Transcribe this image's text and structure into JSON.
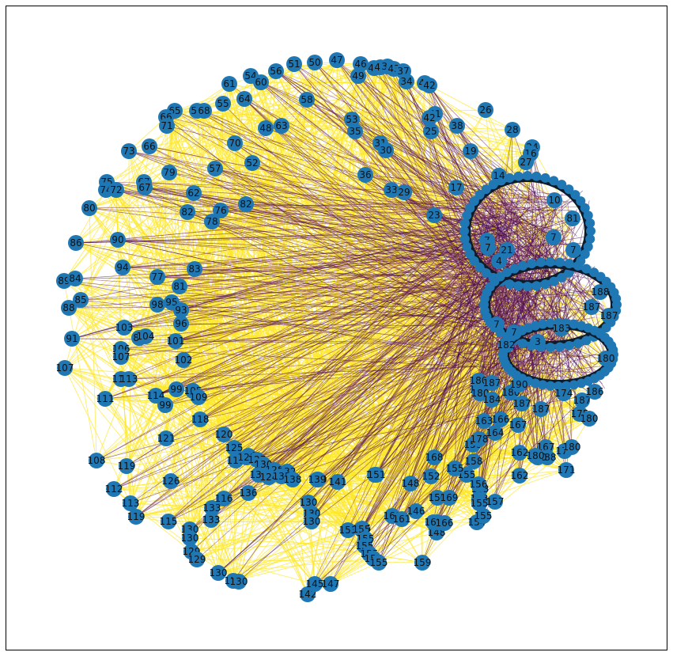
{
  "figure": {
    "background": "#ffffff",
    "border_color": "#000000"
  },
  "graph": {
    "type": "directed-network",
    "node_color": "#1f77b4",
    "node_label_color": "#111111",
    "edge_colors": {
      "light": "#fde725",
      "dark": "#440154",
      "mid": "#7a2a5a"
    },
    "edge_opacity": 0.7
  },
  "chart_data": {
    "type": "network",
    "nodes": [
      "10",
      "11",
      "14",
      "17",
      "19",
      "21",
      "23",
      "25",
      "26",
      "27",
      "28",
      "29",
      "30",
      "31",
      "33",
      "34",
      "35",
      "36",
      "37",
      "38",
      "39",
      "40",
      "41",
      "42",
      "43",
      "44",
      "45",
      "46",
      "47",
      "48",
      "49",
      "50",
      "51",
      "52",
      "53",
      "54",
      "55",
      "56",
      "57",
      "58",
      "59",
      "60",
      "61",
      "62",
      "63",
      "64",
      "65",
      "66",
      "67",
      "68",
      "70",
      "71",
      "72",
      "73",
      "74",
      "75",
      "76",
      "77",
      "78",
      "79",
      "80",
      "81",
      "82",
      "83",
      "84",
      "85",
      "86",
      "87",
      "88",
      "89",
      "90",
      "91",
      "93",
      "94",
      "95",
      "96",
      "98",
      "99",
      "101",
      "102",
      "103",
      "104",
      "105",
      "106",
      "107",
      "108",
      "109",
      "111",
      "112",
      "113",
      "114",
      "115",
      "116",
      "117",
      "118",
      "119",
      "120",
      "121",
      "122",
      "123",
      "124",
      "125",
      "126",
      "127",
      "128",
      "129",
      "130",
      "131",
      "132",
      "133",
      "134",
      "136",
      "137",
      "138",
      "139",
      "140",
      "141",
      "142",
      "144",
      "145",
      "146",
      "147",
      "148",
      "149",
      "150",
      "151",
      "152",
      "153",
      "154",
      "155",
      "156",
      "157",
      "158",
      "159",
      "160",
      "161",
      "162",
      "163",
      "164",
      "165",
      "166",
      "167",
      "168",
      "169",
      "170",
      "171",
      "172",
      "173",
      "174",
      "175",
      "176",
      "177",
      "178",
      "179",
      "180",
      "181",
      "182",
      "183",
      "184",
      "185",
      "186",
      "187",
      "188",
      "189",
      "190"
    ],
    "labeled_nodes": [
      {
        "label": "50"
      },
      {
        "label": "47"
      },
      {
        "label": "51"
      },
      {
        "label": "46"
      },
      {
        "label": "45"
      },
      {
        "label": "44"
      },
      {
        "label": "39"
      },
      {
        "label": "43"
      },
      {
        "label": "37"
      },
      {
        "label": "56"
      },
      {
        "label": "49"
      },
      {
        "label": "54"
      },
      {
        "label": "60"
      },
      {
        "label": "34"
      },
      {
        "label": "40"
      },
      {
        "label": "42"
      },
      {
        "label": "61"
      },
      {
        "label": "64"
      },
      {
        "label": "58"
      },
      {
        "label": "55"
      },
      {
        "label": "26"
      },
      {
        "label": "41"
      },
      {
        "label": "42"
      },
      {
        "label": "65"
      },
      {
        "label": "59"
      },
      {
        "label": "68"
      },
      {
        "label": "53"
      },
      {
        "label": "38"
      },
      {
        "label": "66"
      },
      {
        "label": "71"
      },
      {
        "label": "63"
      },
      {
        "label": "48"
      },
      {
        "label": "35"
      },
      {
        "label": "25"
      },
      {
        "label": "28"
      },
      {
        "label": "70"
      },
      {
        "label": "31"
      },
      {
        "label": "30"
      },
      {
        "label": "19"
      },
      {
        "label": "24"
      },
      {
        "label": "16"
      },
      {
        "label": "73"
      },
      {
        "label": "66"
      },
      {
        "label": "27"
      },
      {
        "label": "52"
      },
      {
        "label": "57"
      },
      {
        "label": "79"
      },
      {
        "label": "36"
      },
      {
        "label": "14"
      },
      {
        "label": "75"
      },
      {
        "label": "67"
      },
      {
        "label": "74"
      },
      {
        "label": "72"
      },
      {
        "label": "67"
      },
      {
        "label": "33"
      },
      {
        "label": "29"
      },
      {
        "label": "17"
      },
      {
        "label": "62"
      },
      {
        "label": "82"
      },
      {
        "label": "80"
      },
      {
        "label": "76"
      },
      {
        "label": "82"
      },
      {
        "label": "78"
      },
      {
        "label": "10"
      },
      {
        "label": "23"
      },
      {
        "label": "81"
      },
      {
        "label": "86"
      },
      {
        "label": "90"
      },
      {
        "label": "21"
      },
      {
        "label": "94"
      },
      {
        "label": "83"
      },
      {
        "label": "89"
      },
      {
        "label": "84"
      },
      {
        "label": "77"
      },
      {
        "label": "81"
      },
      {
        "label": "85"
      },
      {
        "label": "88"
      },
      {
        "label": "98"
      },
      {
        "label": "95"
      },
      {
        "label": "93"
      },
      {
        "label": "96"
      },
      {
        "label": "103"
      },
      {
        "label": "87"
      },
      {
        "label": "104"
      },
      {
        "label": "91"
      },
      {
        "label": "101"
      },
      {
        "label": "106"
      },
      {
        "label": "107"
      },
      {
        "label": "102"
      },
      {
        "label": "107"
      },
      {
        "label": "110"
      },
      {
        "label": "113"
      },
      {
        "label": "99"
      },
      {
        "label": "105"
      },
      {
        "label": "114"
      },
      {
        "label": "109"
      },
      {
        "label": "111"
      },
      {
        "label": "99"
      },
      {
        "label": "118"
      },
      {
        "label": "120"
      },
      {
        "label": "121"
      },
      {
        "label": "125"
      },
      {
        "label": "123"
      },
      {
        "label": "117"
      },
      {
        "label": "122"
      },
      {
        "label": "127"
      },
      {
        "label": "130"
      },
      {
        "label": "128"
      },
      {
        "label": "132"
      },
      {
        "label": "134"
      },
      {
        "label": "124"
      },
      {
        "label": "135"
      },
      {
        "label": "138"
      },
      {
        "label": "140"
      },
      {
        "label": "139"
      },
      {
        "label": "141"
      },
      {
        "label": "144"
      },
      {
        "label": "151"
      },
      {
        "label": "108"
      },
      {
        "label": "119"
      },
      {
        "label": "112"
      },
      {
        "label": "126"
      },
      {
        "label": "113"
      },
      {
        "label": "116"
      },
      {
        "label": "136"
      },
      {
        "label": "130"
      },
      {
        "label": "119"
      },
      {
        "label": "133"
      },
      {
        "label": "115"
      },
      {
        "label": "133"
      },
      {
        "label": "130"
      },
      {
        "label": "130"
      },
      {
        "label": "130"
      },
      {
        "label": "130"
      },
      {
        "label": "129"
      },
      {
        "label": "129"
      },
      {
        "label": "130"
      },
      {
        "label": "133"
      },
      {
        "label": "130"
      },
      {
        "label": "142"
      },
      {
        "label": "145"
      },
      {
        "label": "147"
      },
      {
        "label": "155"
      },
      {
        "label": "153"
      },
      {
        "label": "155"
      },
      {
        "label": "155"
      },
      {
        "label": "155"
      },
      {
        "label": "155"
      },
      {
        "label": "155"
      },
      {
        "label": "155"
      },
      {
        "label": "159"
      },
      {
        "label": "146"
      },
      {
        "label": "148"
      },
      {
        "label": "149"
      },
      {
        "label": "150"
      },
      {
        "label": "169"
      },
      {
        "label": "160"
      },
      {
        "label": "161"
      },
      {
        "label": "165"
      },
      {
        "label": "166"
      },
      {
        "label": "148"
      },
      {
        "label": "154"
      },
      {
        "label": "155"
      },
      {
        "label": "153"
      },
      {
        "label": "153"
      },
      {
        "label": "155"
      },
      {
        "label": "157"
      },
      {
        "label": "155"
      },
      {
        "label": "156"
      },
      {
        "label": "152"
      },
      {
        "label": "155"
      },
      {
        "label": "158"
      },
      {
        "label": "168"
      },
      {
        "label": "158"
      },
      {
        "label": "162"
      },
      {
        "label": "162"
      },
      {
        "label": "163"
      },
      {
        "label": "164"
      },
      {
        "label": "166"
      },
      {
        "label": "167"
      },
      {
        "label": "178"
      },
      {
        "label": "180"
      },
      {
        "label": "180"
      },
      {
        "label": "167"
      },
      {
        "label": "170"
      },
      {
        "label": "180"
      },
      {
        "label": "171"
      },
      {
        "label": "188"
      },
      {
        "label": "180"
      },
      {
        "label": "180"
      },
      {
        "label": "175"
      },
      {
        "label": "180"
      },
      {
        "label": "187"
      },
      {
        "label": "187"
      },
      {
        "label": "174"
      },
      {
        "label": "187"
      },
      {
        "label": "186"
      },
      {
        "label": "180"
      },
      {
        "label": "184"
      },
      {
        "label": "180"
      },
      {
        "label": "187"
      },
      {
        "label": "190"
      },
      {
        "label": "182"
      },
      {
        "label": "183"
      },
      {
        "label": "187"
      },
      {
        "label": "188"
      },
      {
        "label": "187"
      },
      {
        "label": "180"
      },
      {
        "label": "7"
      },
      {
        "label": "7"
      },
      {
        "label": "4"
      },
      {
        "label": "7"
      },
      {
        "label": "7"
      },
      {
        "label": "7"
      },
      {
        "label": "7"
      },
      {
        "label": "3"
      }
    ]
  }
}
